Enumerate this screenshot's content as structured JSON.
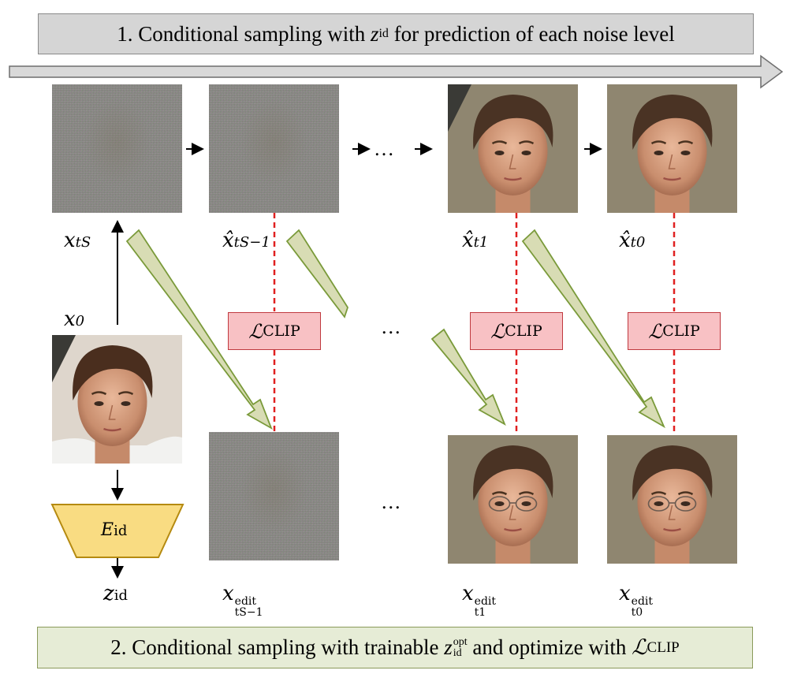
{
  "banner_top": {
    "prefix": "1. Conditional sampling with ",
    "z": "z",
    "z_sub": "id",
    "suffix": " for prediction of each noise level"
  },
  "banner_bottom": {
    "prefix": "2. Conditional sampling with trainable ",
    "z": "z",
    "z_sub": "id",
    "z_sup": "opt",
    "middle": " and optimize with ",
    "loss": "ℒ",
    "loss_sub": "CLIP"
  },
  "top_labels": {
    "xts": {
      "base": "x",
      "sub": "tS"
    },
    "xts1": {
      "base": "x̂",
      "sub": "tS−1"
    },
    "xt1": {
      "base": "x̂",
      "sub": "t1"
    },
    "xt0": {
      "base": "x̂",
      "sub": "t0"
    }
  },
  "x0_label": {
    "base": "x",
    "sub": "0"
  },
  "encoder": {
    "base": "E",
    "sub": "id"
  },
  "zid_label": {
    "base": "z",
    "sub": "id"
  },
  "clip_box": {
    "symbol": "ℒ",
    "sub": "CLIP"
  },
  "bottom_labels": {
    "edit_sup": "edit",
    "xts1": {
      "base": "x",
      "sub": "tS−1"
    },
    "xt1": {
      "base": "x",
      "sub": "t1"
    },
    "xt0": {
      "base": "x",
      "sub": "t0"
    }
  },
  "ellipsis": "…",
  "ellipsis_mid": "...",
  "colors": {
    "banner_top_bg": "#d5d5d5",
    "banner_bottom_bg": "#e6ecd6",
    "clip_box_bg": "#f8c1c4",
    "clip_dash": "#e02020",
    "encoder_fill": "#f9dc82",
    "encoder_stroke": "#b58a10",
    "green_arrow_fill": "#d8dcb4",
    "green_arrow_stroke": "#7a9a3a"
  },
  "icons": {
    "face_images": "face-photo",
    "noise_images": "noise-texture"
  }
}
